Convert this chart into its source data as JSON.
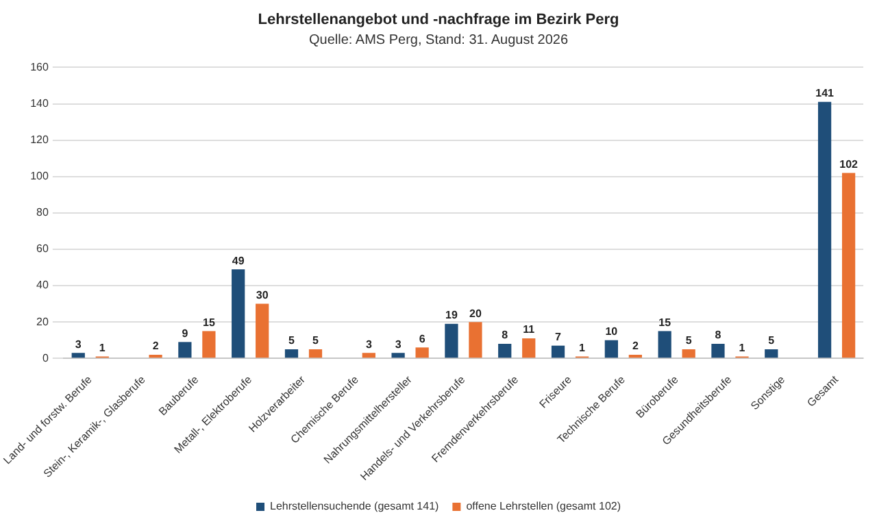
{
  "chart_data": {
    "type": "bar",
    "title": "Lehrstellenangebot und -nachfrage im Bezirk Perg",
    "subtitle": "Quelle: AMS Perg, Stand: 31. August 2026",
    "categories": [
      "Land- und forstw. Berufe",
      "Stein-, Keramik-, Glasberufe",
      "Bauberufe",
      "Metall-, Elektroberufe",
      "Holzverarbeiter",
      "Chemische Berufe",
      "Nahrungsmittelhersteller",
      "Handels- und Verkehrsberufe",
      "Fremdenverkehrsberufe",
      "Friseure",
      "Technische Berufe",
      "Büroberufe",
      "Gesundheitsberufe",
      "Sonstige",
      "Gesamt"
    ],
    "series": [
      {
        "name": "Lehrstellensuchende (gesamt 141)",
        "color": "#1f4e79",
        "values": [
          3,
          null,
          9,
          49,
          5,
          null,
          3,
          19,
          8,
          7,
          10,
          15,
          8,
          5,
          141
        ]
      },
      {
        "name": "offene Lehrstellen (gesamt 102)",
        "color": "#e97132",
        "values": [
          1,
          2,
          15,
          30,
          5,
          3,
          6,
          20,
          11,
          1,
          2,
          5,
          1,
          null,
          102
        ]
      }
    ],
    "ylim": [
      0,
      160
    ],
    "yticks": [
      0,
      20,
      40,
      60,
      80,
      100,
      120,
      140,
      160
    ],
    "grid": "y",
    "legend": "bottom",
    "data_labels": true
  }
}
